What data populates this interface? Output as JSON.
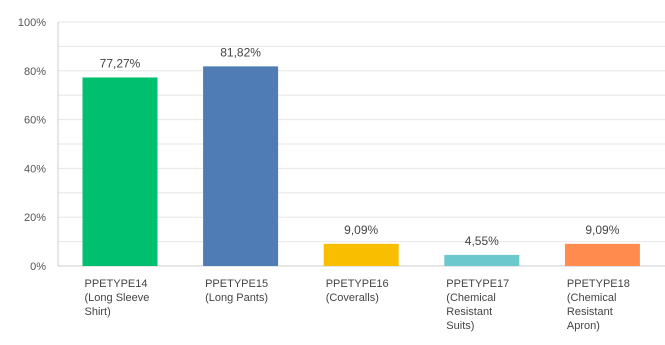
{
  "chart_data": {
    "type": "bar",
    "title": "",
    "xlabel": "",
    "ylabel": "",
    "ylim": [
      0,
      100
    ],
    "grid": true,
    "legend": "none",
    "y_ticks": [
      "0%",
      "20%",
      "40%",
      "60%",
      "80%",
      "100%"
    ],
    "categories": [
      "PPETYPE14 (Long Sleeve Shirt)",
      "PPETYPE15 (Long Pants)",
      "PPETYPE16 (Coveralls)",
      "PPETYPE17 (Chemical Resistant Suits)",
      "PPETYPE18 (Chemical Resistant Apron)"
    ],
    "category_lines": [
      [
        "PPETYPE14",
        "(Long Sleeve",
        "Shirt)"
      ],
      [
        "PPETYPE15",
        "(Long Pants)"
      ],
      [
        "PPETYPE16",
        "(Coveralls)"
      ],
      [
        "PPETYPE17",
        "(Chemical",
        "Resistant",
        "Suits)"
      ],
      [
        "PPETYPE18",
        "(Chemical",
        "Resistant",
        "Apron)"
      ]
    ],
    "values": [
      77.27,
      81.82,
      9.09,
      4.55,
      9.09
    ],
    "data_labels": [
      "77,27%",
      "81,82%",
      "9,09%",
      "4,55%",
      "9,09%"
    ],
    "colors": [
      "#00bf6f",
      "#507cb6",
      "#f9be00",
      "#6bc8cd",
      "#ff8b4f"
    ]
  }
}
